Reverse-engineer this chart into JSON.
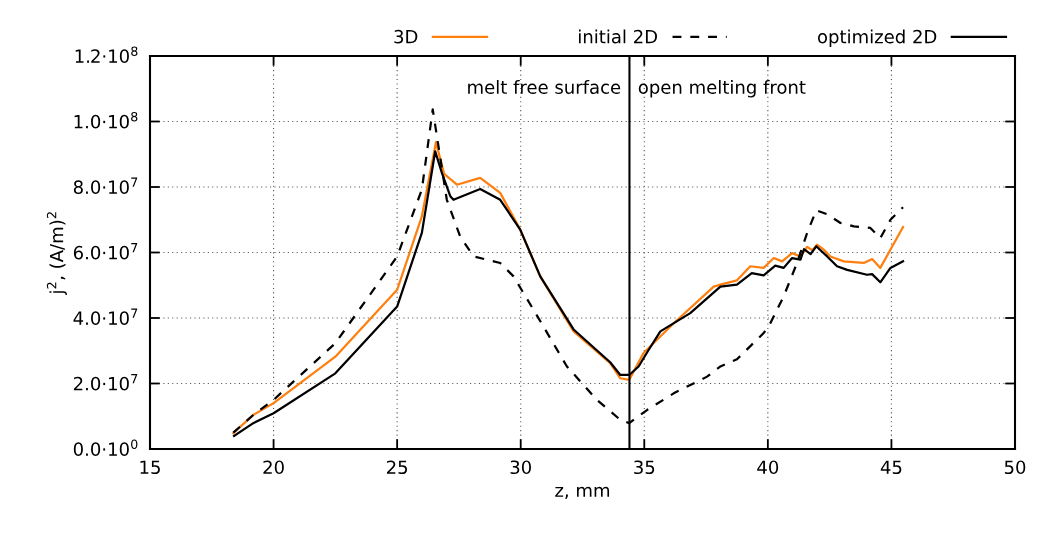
{
  "chart_data": {
    "type": "line",
    "xlabel": "z, mm",
    "ylabel": "j$^{2}$, (A/m)$^{2}$",
    "xlim": [
      15,
      50
    ],
    "xticks": [
      15,
      20,
      25,
      30,
      35,
      40,
      45,
      50
    ],
    "ylim": [
      0,
      120000000
    ],
    "yticks": [
      {
        "value": 0,
        "label": "0.0·10$^{0}$"
      },
      {
        "value": 20000000,
        "label": "2.0·10$^{7}$"
      },
      {
        "value": 40000000,
        "label": "4.0·10$^{7}$"
      },
      {
        "value": 60000000,
        "label": "6.0·10$^{7}$"
      },
      {
        "value": 80000000,
        "label": "8.0·10$^{7}$"
      },
      {
        "value": 100000000,
        "label": "1.0·10$^{8}$"
      },
      {
        "value": 120000000,
        "label": "1.2·10$^{8}$"
      }
    ],
    "grid": true,
    "legend": "top",
    "marker": "none",
    "series": [
      {
        "name": "3D",
        "color": "#ff7f0e",
        "line_style": "solid",
        "x": [
          18.37,
          19.18,
          20,
          22.5,
          25,
          26,
          26.57,
          26.9,
          27.42,
          28.36,
          29.17,
          29.98,
          30.79,
          32.14,
          33.62,
          34.03,
          34.39,
          34.97,
          36.19,
          37.81,
          38.08,
          38.75,
          39.29,
          39.83,
          40.24,
          40.58,
          40.98,
          41.32,
          41.59,
          41.8,
          41.99,
          42.26,
          42.53,
          43.07,
          43.88,
          44.22,
          44.55,
          45.47
        ],
        "values": [
          4800000,
          10400000,
          14000000,
          28200000,
          48600000,
          71000000,
          93700000,
          84000000,
          80700000,
          82800000,
          78200000,
          67000000,
          52700000,
          35900000,
          26200000,
          21600000,
          21100000,
          29300000,
          38400000,
          49600000,
          50200000,
          51500000,
          55800000,
          55300000,
          58300000,
          57300000,
          59800000,
          58800000,
          61700000,
          60700000,
          62400000,
          60900000,
          58800000,
          57300000,
          56800000,
          58000000,
          55300000,
          67800000
        ]
      },
      {
        "name": "initial 2D",
        "color": "#000000",
        "line_style": "dashed",
        "x": [
          18.37,
          19.18,
          20,
          22.5,
          25,
          26,
          26.44,
          27.01,
          27.55,
          28.09,
          29.17,
          29.71,
          30.52,
          31.87,
          33.08,
          34.03,
          34.39,
          35.11,
          36.19,
          37.54,
          38.08,
          38.75,
          39.83,
          40.1,
          40.64,
          41.18,
          41.59,
          41.96,
          42.4,
          42.94,
          43.48,
          44.15,
          44.55,
          44.96,
          45.47
        ],
        "values": [
          5000000,
          10400000,
          15000000,
          32300000,
          58800000,
          79200000,
          103700000,
          76100000,
          64900000,
          58800000,
          56800000,
          52700000,
          42500000,
          25200000,
          15000000,
          8900000,
          7900000,
          11900000,
          17000000,
          22100000,
          25200000,
          27400000,
          35400000,
          38400000,
          46600000,
          56800000,
          66000000,
          72900000,
          71700000,
          69000000,
          68000000,
          67500000,
          64400000,
          70000000,
          73800000
        ]
      },
      {
        "name": "optimized 2D",
        "color": "#000000",
        "line_style": "solid",
        "x": [
          18.4,
          19.18,
          20,
          22.5,
          25,
          26,
          26.54,
          26.81,
          27.15,
          27.28,
          28.36,
          29.17,
          29.98,
          30.79,
          32.14,
          33.62,
          34.03,
          34.39,
          34.77,
          35.18,
          35.65,
          36.86,
          38.08,
          38.75,
          39.35,
          39.83,
          40.3,
          40.64,
          40.98,
          41.32,
          41.46,
          41.73,
          41.96,
          42.13,
          42.4,
          42.8,
          43.21,
          44.01,
          44.22,
          44.55,
          44.96,
          45.47
        ],
        "values": [
          4000000,
          7900000,
          10900000,
          23100000,
          43500000,
          66000000,
          90900000,
          84300000,
          77200000,
          76100000,
          79400000,
          76100000,
          67000000,
          52700000,
          36500000,
          26500000,
          22600000,
          22600000,
          25200000,
          30300000,
          35900000,
          41500000,
          49600000,
          50200000,
          53700000,
          53000000,
          56000000,
          55300000,
          58300000,
          57800000,
          61000000,
          59500000,
          61900000,
          60700000,
          58800000,
          55800000,
          54700000,
          53200000,
          53400000,
          50900000,
          55300000,
          57300000
        ]
      }
    ],
    "ref_lines": [
      {
        "axis": "x",
        "value": 34.4,
        "color": "#000000",
        "line_style": "solid"
      }
    ],
    "annotations": [
      {
        "text": "melt free surface",
        "x": 34.4,
        "y": 110000000
      },
      {
        "text": "open melting front",
        "x": 34.4,
        "y": 110000000
      }
    ]
  }
}
